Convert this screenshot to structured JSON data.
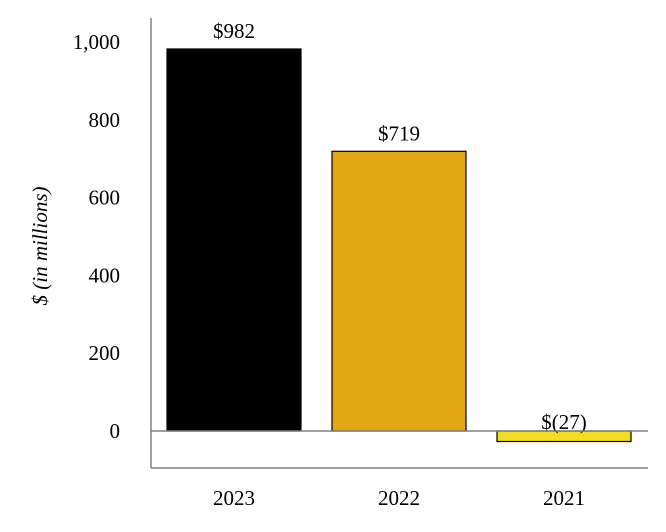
{
  "chart_data": {
    "type": "bar",
    "categories": [
      "2023",
      "2022",
      "2021"
    ],
    "values": [
      982,
      719,
      -27
    ],
    "data_labels": [
      "$982",
      "$719",
      "$(27)"
    ],
    "ylabel": "$ (in millions)",
    "ylim": [
      -100,
      1100
    ],
    "yticks": [
      0,
      200,
      400,
      600,
      800,
      1000
    ],
    "ytick_labels": [
      "0",
      "200",
      "400",
      "600",
      "800",
      "1,000"
    ],
    "colors": [
      "#000000",
      "#E4A714",
      "#F3DD1F"
    ],
    "grid": false,
    "legend": "none"
  }
}
